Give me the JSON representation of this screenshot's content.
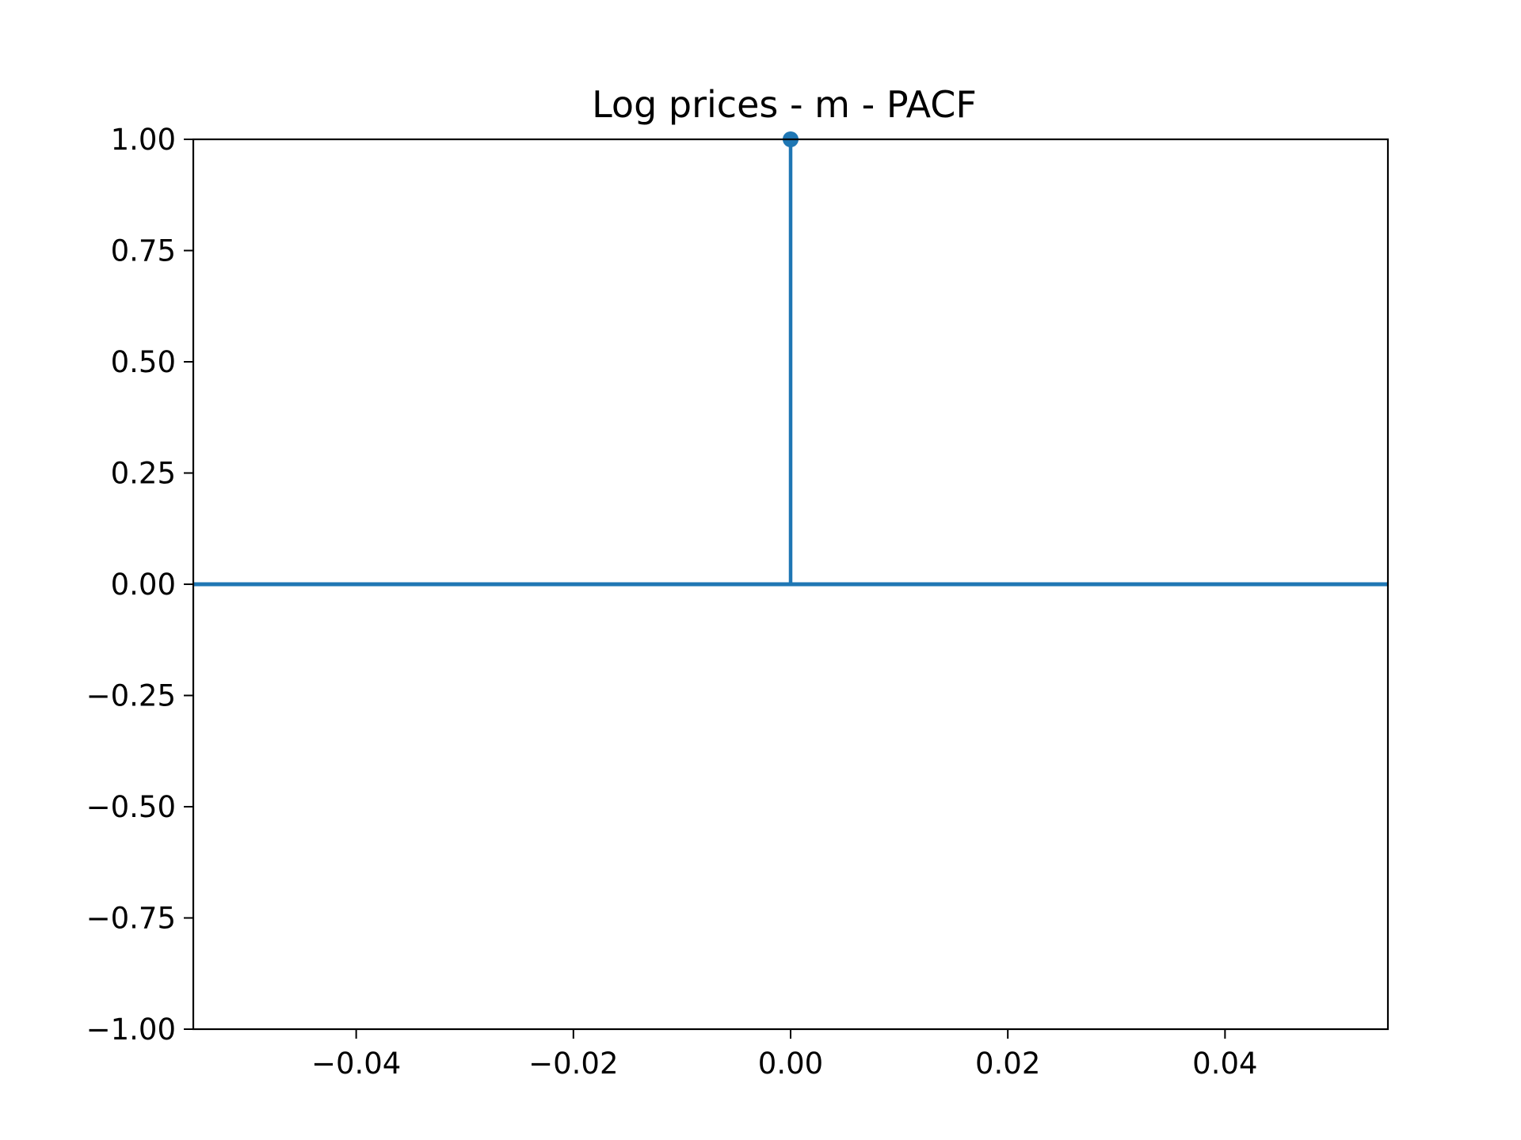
{
  "chart_data": {
    "type": "stem",
    "title": "Log prices - m - PACF",
    "xlabel": "",
    "ylabel": "",
    "xlim": [
      -0.055,
      0.055
    ],
    "ylim": [
      -1.0,
      1.0
    ],
    "x_ticks": [
      -0.04,
      -0.02,
      0.0,
      0.02,
      0.04
    ],
    "x_tick_labels": [
      "−0.04",
      "−0.02",
      "0.00",
      "0.02",
      "0.04"
    ],
    "y_ticks": [
      -1.0,
      -0.75,
      -0.5,
      -0.25,
      0.0,
      0.25,
      0.5,
      0.75,
      1.0
    ],
    "y_tick_labels": [
      "−1.00",
      "−0.75",
      "−0.50",
      "−0.25",
      "0.00",
      "0.25",
      "0.50",
      "0.75",
      "1.00"
    ],
    "grid": false,
    "legend": "none",
    "baseline": 0.0,
    "series": [
      {
        "x": [
          0
        ],
        "y": [
          1.0
        ],
        "color": "#1f77b4"
      }
    ]
  }
}
